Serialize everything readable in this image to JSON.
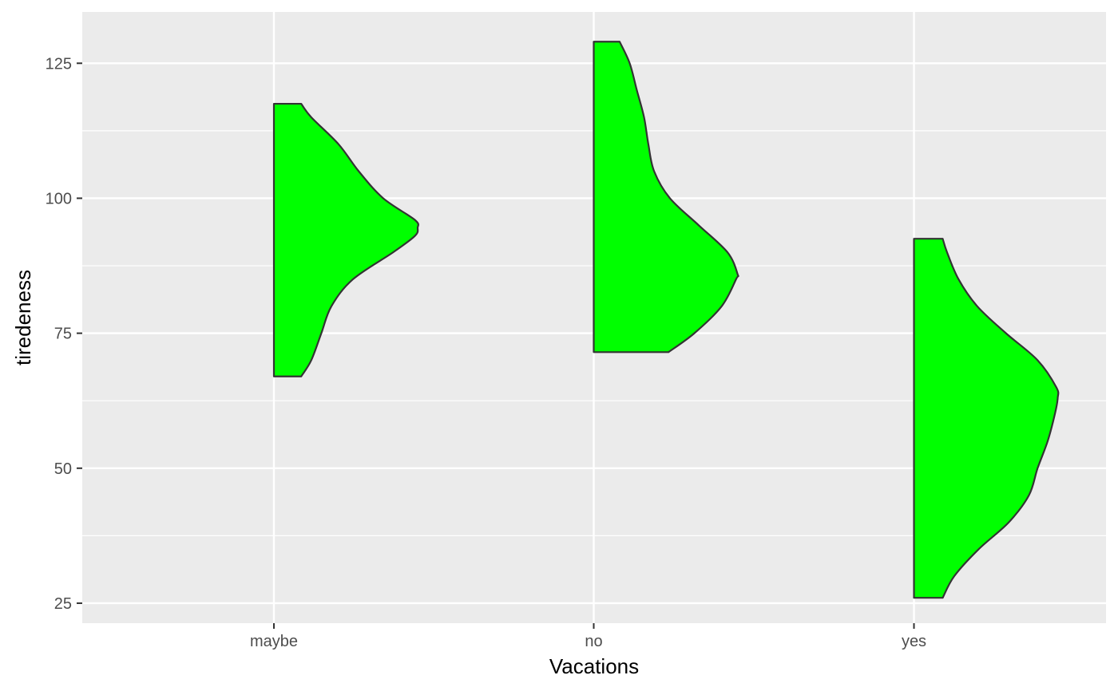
{
  "chart_data": {
    "type": "half-violin",
    "xlabel": "Vacations",
    "ylabel": "tiredeness",
    "categories": [
      "maybe",
      "no",
      "yes"
    ],
    "ylim": [
      21.3,
      134.5
    ],
    "yticks": [
      25,
      50,
      75,
      100,
      125
    ],
    "grid": true,
    "colors": {
      "panel": "#ebebeb",
      "grid": "#ffffff",
      "fill": "#00ff00",
      "outline": "#333333"
    },
    "violins": [
      {
        "category": "maybe",
        "y_min": 67.0,
        "y_max": 117.5,
        "profile": [
          [
            67.0,
            0.19
          ],
          [
            70.0,
            0.26
          ],
          [
            75.0,
            0.33
          ],
          [
            80.0,
            0.4
          ],
          [
            85.0,
            0.55
          ],
          [
            90.0,
            0.83
          ],
          [
            93.0,
            0.98
          ],
          [
            94.5,
            1.0
          ],
          [
            96.0,
            0.98
          ],
          [
            100.0,
            0.76
          ],
          [
            105.0,
            0.59
          ],
          [
            110.0,
            0.45
          ],
          [
            115.0,
            0.26
          ],
          [
            117.5,
            0.19
          ]
        ]
      },
      {
        "category": "no",
        "y_min": 71.5,
        "y_max": 129.0,
        "profile": [
          [
            71.5,
            0.52
          ],
          [
            75.0,
            0.7
          ],
          [
            80.0,
            0.89
          ],
          [
            85.0,
            0.99
          ],
          [
            86.0,
            1.0
          ],
          [
            90.0,
            0.93
          ],
          [
            95.0,
            0.73
          ],
          [
            100.0,
            0.53
          ],
          [
            105.0,
            0.42
          ],
          [
            110.0,
            0.38
          ],
          [
            115.0,
            0.35
          ],
          [
            120.0,
            0.3
          ],
          [
            125.0,
            0.25
          ],
          [
            129.0,
            0.18
          ]
        ]
      },
      {
        "category": "yes",
        "y_min": 26.0,
        "y_max": 92.5,
        "profile": [
          [
            26.0,
            0.2
          ],
          [
            30.0,
            0.28
          ],
          [
            35.0,
            0.45
          ],
          [
            40.0,
            0.66
          ],
          [
            45.0,
            0.8
          ],
          [
            50.0,
            0.86
          ],
          [
            55.0,
            0.93
          ],
          [
            60.0,
            0.98
          ],
          [
            63.0,
            1.0
          ],
          [
            65.0,
            0.99
          ],
          [
            70.0,
            0.86
          ],
          [
            75.0,
            0.64
          ],
          [
            80.0,
            0.44
          ],
          [
            85.0,
            0.31
          ],
          [
            90.0,
            0.23
          ],
          [
            92.5,
            0.2
          ]
        ]
      }
    ]
  }
}
